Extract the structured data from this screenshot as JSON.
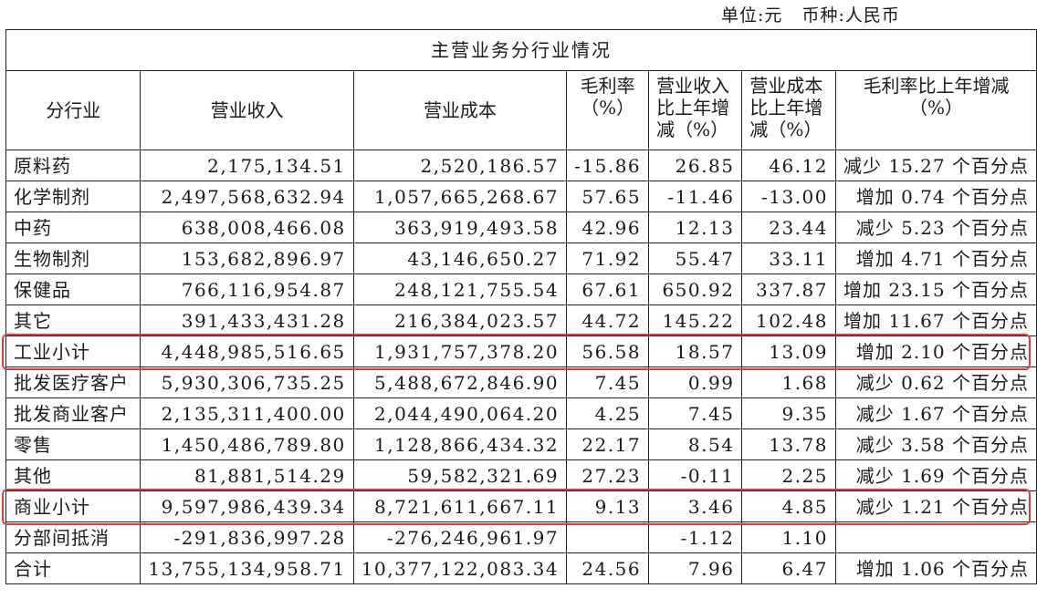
{
  "unit_line": "单位:元   币种:人民币",
  "title": "主营业务分行业情况",
  "headers": {
    "industry": "分行业",
    "revenue": "营业收入",
    "cost": "营业成本",
    "margin_a": "毛利率",
    "margin_b": "（%）",
    "rev_chg_a": "营业收入",
    "rev_chg_b": "比上年增",
    "rev_chg_c": "减（%）",
    "cost_chg_a": "营业成本",
    "cost_chg_b": "比上年增",
    "cost_chg_c": "减（%）",
    "margin_chg_a": "毛利率比上年增减",
    "margin_chg_b": "（%）"
  },
  "rows": [
    {
      "name": "原料药",
      "revenue": "2,175,134.51",
      "cost": "2,520,186.57",
      "margin": "-15.86",
      "rev_chg": "26.85",
      "cost_chg": "46.12",
      "margin_chg": "减少 15.27 个百分点"
    },
    {
      "name": "化学制剂",
      "revenue": "2,497,568,632.94",
      "cost": "1,057,665,268.67",
      "margin": "57.65",
      "rev_chg": "-11.46",
      "cost_chg": "-13.00",
      "margin_chg": "增加 0.74 个百分点"
    },
    {
      "name": "中药",
      "revenue": "638,008,466.08",
      "cost": "363,919,493.58",
      "margin": "42.96",
      "rev_chg": "12.13",
      "cost_chg": "23.44",
      "margin_chg": "减少 5.23 个百分点"
    },
    {
      "name": "生物制剂",
      "revenue": "153,682,896.97",
      "cost": "43,146,650.27",
      "margin": "71.92",
      "rev_chg": "55.47",
      "cost_chg": "33.11",
      "margin_chg": "增加 4.71 个百分点"
    },
    {
      "name": "保健品",
      "revenue": "766,116,954.87",
      "cost": "248,121,755.54",
      "margin": "67.61",
      "rev_chg": "650.92",
      "cost_chg": "337.87",
      "margin_chg": "增加 23.15 个百分点"
    },
    {
      "name": "其它",
      "revenue": "391,433,431.28",
      "cost": "216,384,023.57",
      "margin": "44.72",
      "rev_chg": "145.22",
      "cost_chg": "102.48",
      "margin_chg": "增加 11.67 个百分点"
    },
    {
      "name": "工业小计",
      "revenue": "4,448,985,516.65",
      "cost": "1,931,757,378.20",
      "margin": "56.58",
      "rev_chg": "18.57",
      "cost_chg": "13.09",
      "margin_chg": "增加 2.10 个百分点"
    },
    {
      "name": "批发医疗客户",
      "revenue": "5,930,306,735.25",
      "cost": "5,488,672,846.90",
      "margin": "7.45",
      "rev_chg": "0.99",
      "cost_chg": "1.68",
      "margin_chg": "减少 0.62 个百分点"
    },
    {
      "name": "批发商业客户",
      "revenue": "2,135,311,400.00",
      "cost": "2,044,490,064.20",
      "margin": "4.25",
      "rev_chg": "7.45",
      "cost_chg": "9.35",
      "margin_chg": "减少 1.67 个百分点"
    },
    {
      "name": "零售",
      "revenue": "1,450,486,789.80",
      "cost": "1,128,866,434.32",
      "margin": "22.17",
      "rev_chg": "8.54",
      "cost_chg": "13.78",
      "margin_chg": "减少 3.58 个百分点"
    },
    {
      "name": "其他",
      "revenue": "81,881,514.29",
      "cost": "59,582,321.69",
      "margin": "27.23",
      "rev_chg": "-0.11",
      "cost_chg": "2.25",
      "margin_chg": "减少 1.69 个百分点"
    },
    {
      "name": "商业小计",
      "revenue": "9,597,986,439.34",
      "cost": "8,721,611,667.11",
      "margin": "9.13",
      "rev_chg": "3.46",
      "cost_chg": "4.85",
      "margin_chg": "减少 1.21 个百分点"
    },
    {
      "name": "分部间抵消",
      "revenue": "-291,836,997.28",
      "cost": "-276,246,961.97",
      "margin": "",
      "rev_chg": "-1.12",
      "cost_chg": "1.10",
      "margin_chg": ""
    },
    {
      "name": "合计",
      "revenue": "13,755,134,958.71",
      "cost": "10,377,122,083.34",
      "margin": "24.56",
      "rev_chg": "7.96",
      "cost_chg": "6.47",
      "margin_chg": "增加 1.06 个百分点"
    }
  ],
  "highlight_color": "#e23b3b"
}
